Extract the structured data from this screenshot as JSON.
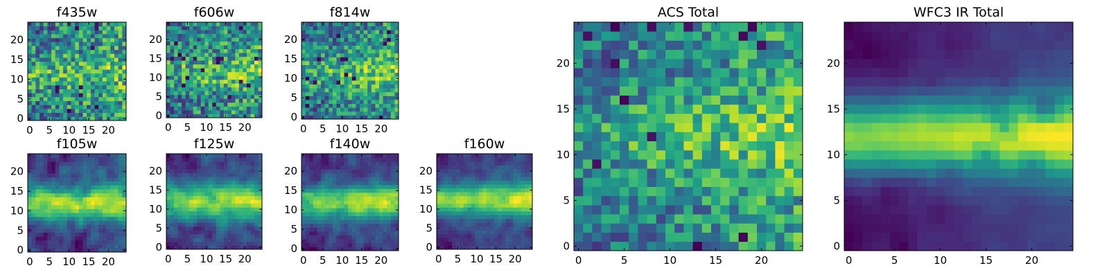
{
  "chart_data": [
    {
      "type": "heatmap",
      "title": "f435w",
      "grid": [
        25,
        25
      ],
      "colormap": "viridis",
      "xticks": [
        0,
        5,
        10,
        15,
        20
      ],
      "yticks": [
        0,
        5,
        10,
        15,
        20
      ],
      "xlim": [
        -0.5,
        24.5
      ],
      "ylim": [
        -0.5,
        24.5
      ],
      "pattern": "noisy",
      "band_center_row": 11.5,
      "band_width": 5,
      "band_strength": 0.15,
      "noise": 0.28,
      "hot_right": 0.1,
      "seed": 11
    },
    {
      "type": "heatmap",
      "title": "f606w",
      "grid": [
        25,
        25
      ],
      "colormap": "viridis",
      "xticks": [
        0,
        5,
        10,
        15,
        20
      ],
      "yticks": [
        0,
        5,
        10,
        15,
        20
      ],
      "xlim": [
        -0.5,
        24.5
      ],
      "ylim": [
        -0.5,
        24.5
      ],
      "pattern": "noisy",
      "band_center_row": 11.5,
      "band_width": 5,
      "band_strength": 0.18,
      "noise": 0.28,
      "hot_right": 0.12,
      "seed": 23
    },
    {
      "type": "heatmap",
      "title": "f814w",
      "grid": [
        25,
        25
      ],
      "colormap": "viridis",
      "xticks": [
        0,
        5,
        10,
        15,
        20
      ],
      "yticks": [
        0,
        5,
        10,
        15,
        20
      ],
      "xlim": [
        -0.5,
        24.5
      ],
      "ylim": [
        -0.5,
        24.5
      ],
      "pattern": "noisy",
      "band_center_row": 11.5,
      "band_width": 5,
      "band_strength": 0.22,
      "noise": 0.26,
      "hot_right": 0.15,
      "seed": 37
    },
    {
      "type": "heatmap",
      "title": "f105w",
      "grid": [
        25,
        25
      ],
      "colormap": "viridis",
      "xticks": [
        0,
        5,
        10,
        15,
        20
      ],
      "yticks": [
        0,
        5,
        10,
        15,
        20
      ],
      "xlim": [
        -0.5,
        24.5
      ],
      "ylim": [
        -0.5,
        24.5
      ],
      "pattern": "band",
      "band_center_row": 12,
      "band_width": 4.5,
      "band_strength": 0.5,
      "noise": 0.22,
      "hot_right": 0.1,
      "seed": 41
    },
    {
      "type": "heatmap",
      "title": "f125w",
      "grid": [
        25,
        25
      ],
      "colormap": "viridis",
      "xticks": [
        0,
        5,
        10,
        15,
        20
      ],
      "yticks": [
        0,
        5,
        10,
        15,
        20
      ],
      "xlim": [
        -0.5,
        24.5
      ],
      "ylim": [
        -0.5,
        24.5
      ],
      "pattern": "band",
      "band_center_row": 12,
      "band_width": 4.5,
      "band_strength": 0.5,
      "noise": 0.22,
      "hot_right": 0.1,
      "seed": 53
    },
    {
      "type": "heatmap",
      "title": "f140w",
      "grid": [
        25,
        25
      ],
      "colormap": "viridis",
      "xticks": [
        0,
        5,
        10,
        15,
        20
      ],
      "yticks": [
        0,
        5,
        10,
        15,
        20
      ],
      "xlim": [
        -0.5,
        24.5
      ],
      "ylim": [
        -0.5,
        24.5
      ],
      "pattern": "band",
      "band_center_row": 12,
      "band_width": 4.5,
      "band_strength": 0.55,
      "noise": 0.22,
      "hot_right": 0.1,
      "seed": 67
    },
    {
      "type": "heatmap",
      "title": "f160w",
      "grid": [
        25,
        25
      ],
      "colormap": "viridis",
      "xticks": [
        0,
        5,
        10,
        15,
        20
      ],
      "yticks": [
        0,
        5,
        10,
        15,
        20
      ],
      "xlim": [
        -0.5,
        24.5
      ],
      "ylim": [
        -0.5,
        24.5
      ],
      "pattern": "band",
      "band_center_row": 12.5,
      "band_width": 4,
      "band_strength": 0.65,
      "noise": 0.2,
      "hot_right": 0.12,
      "seed": 79
    },
    {
      "type": "heatmap",
      "title": "ACS Total",
      "grid": [
        25,
        25
      ],
      "colormap": "viridis",
      "xticks": [
        0,
        5,
        10,
        15,
        20
      ],
      "yticks": [
        0,
        5,
        10,
        15,
        20
      ],
      "xlim": [
        -0.5,
        24.5
      ],
      "ylim": [
        -0.5,
        24.5
      ],
      "pattern": "noisy",
      "band_center_row": 12,
      "band_width": 4,
      "band_strength": 0.2,
      "noise": 0.24,
      "hot_right": 0.2,
      "seed": 97
    },
    {
      "type": "heatmap",
      "title": "WFC3 IR Total",
      "grid": [
        25,
        25
      ],
      "colormap": "viridis",
      "xticks": [
        0,
        5,
        10,
        15,
        20
      ],
      "yticks": [
        0,
        5,
        10,
        15,
        20
      ],
      "xlim": [
        -0.5,
        24.5
      ],
      "ylim": [
        -0.5,
        24.5
      ],
      "pattern": "band",
      "band_center_row": 12,
      "band_width": 4,
      "band_strength": 0.75,
      "noise": 0.08,
      "hot_right": 0.18,
      "seed": 101
    }
  ]
}
